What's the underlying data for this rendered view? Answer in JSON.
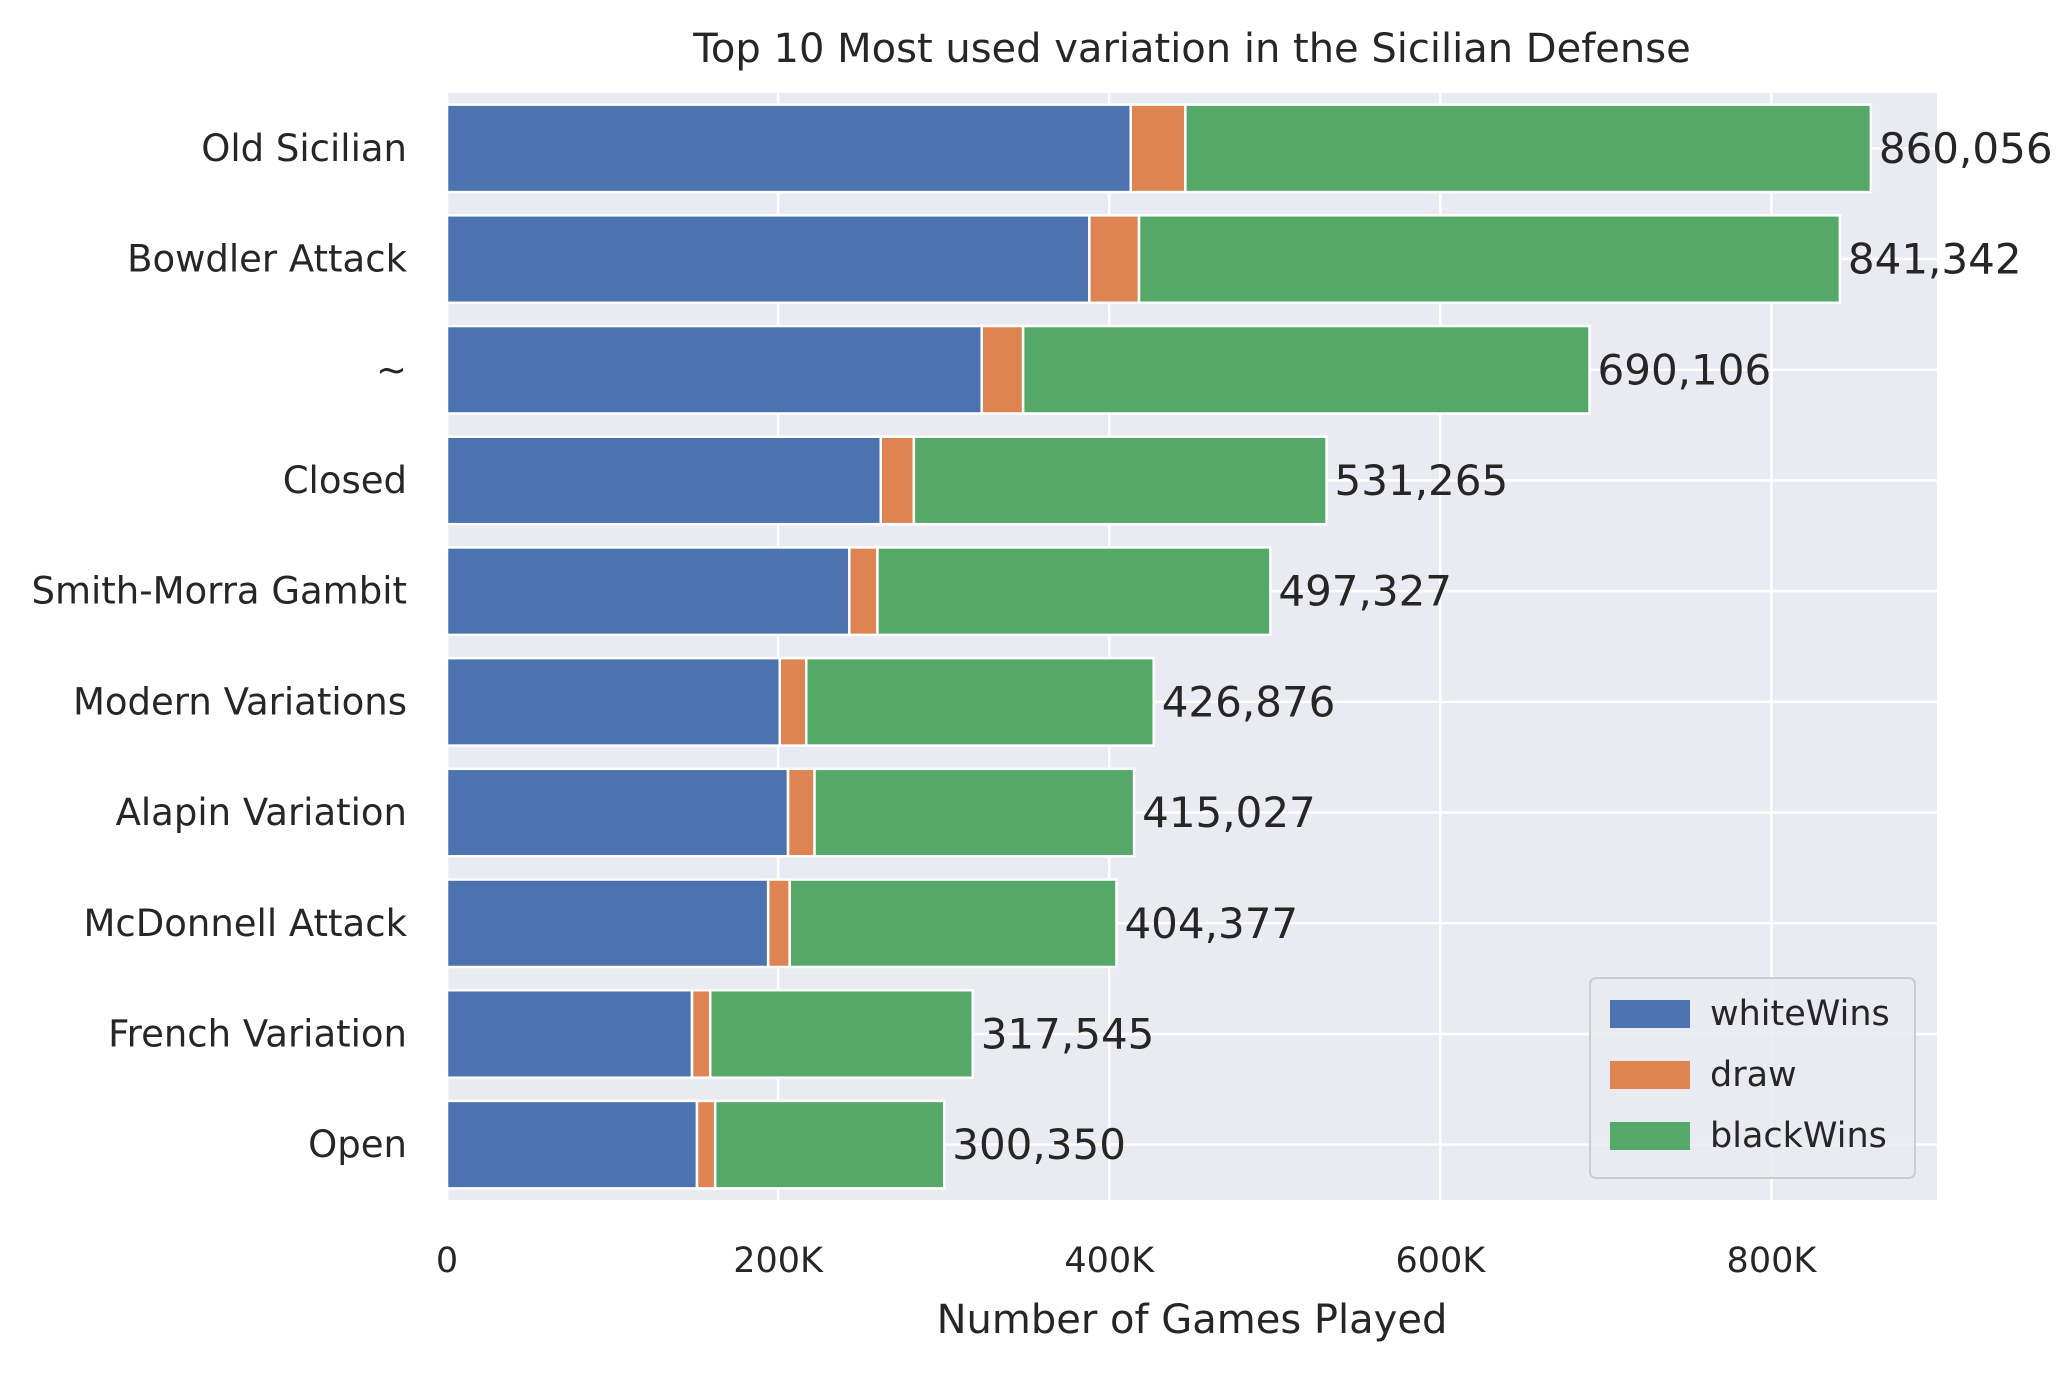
{
  "chart_data": {
    "type": "bar",
    "orientation": "horizontal",
    "stacked": true,
    "title": "Top 10 Most used variation in the Sicilian Defense",
    "xlabel": "Number of Games Played",
    "ylabel": "",
    "xlim": [
      0,
      900000
    ],
    "xticks": [
      0,
      200000,
      400000,
      600000,
      800000
    ],
    "xtick_labels": [
      "0",
      "200K",
      "400K",
      "600K",
      "800K"
    ],
    "grid": true,
    "legend_position": "lower-right",
    "categories": [
      "Old Sicilian",
      "Bowdler Attack",
      "~",
      "Closed",
      "Smith-Morra Gambit",
      "Modern Variations",
      "Alapin Variation",
      "McDonnell Attack",
      "French Variation",
      "Open"
    ],
    "series": [
      {
        "name": "whiteWins",
        "color": "#4c72b0",
        "values": [
          413000,
          388000,
          323000,
          262000,
          243000,
          201000,
          206000,
          194000,
          148000,
          151000
        ]
      },
      {
        "name": "draw",
        "color": "#dd8452",
        "values": [
          33000,
          30000,
          25000,
          20000,
          17000,
          16000,
          16000,
          13000,
          11000,
          11000
        ]
      },
      {
        "name": "blackWins",
        "color": "#55a868",
        "values": [
          414056,
          423342,
          342106,
          249265,
          237327,
          209876,
          193027,
          197377,
          158545,
          138350
        ]
      }
    ],
    "totals": [
      860056,
      841342,
      690106,
      531265,
      497327,
      426876,
      415027,
      404377,
      317545,
      300350
    ],
    "total_labels": [
      "860,056",
      "841,342",
      "690,106",
      "531,265",
      "497,327",
      "426,876",
      "415,027",
      "404,377",
      "317,545",
      "300,350"
    ]
  },
  "colors": {
    "plot_background": "#eaeaf2",
    "grid": "#ffffff",
    "text": "#262626"
  }
}
